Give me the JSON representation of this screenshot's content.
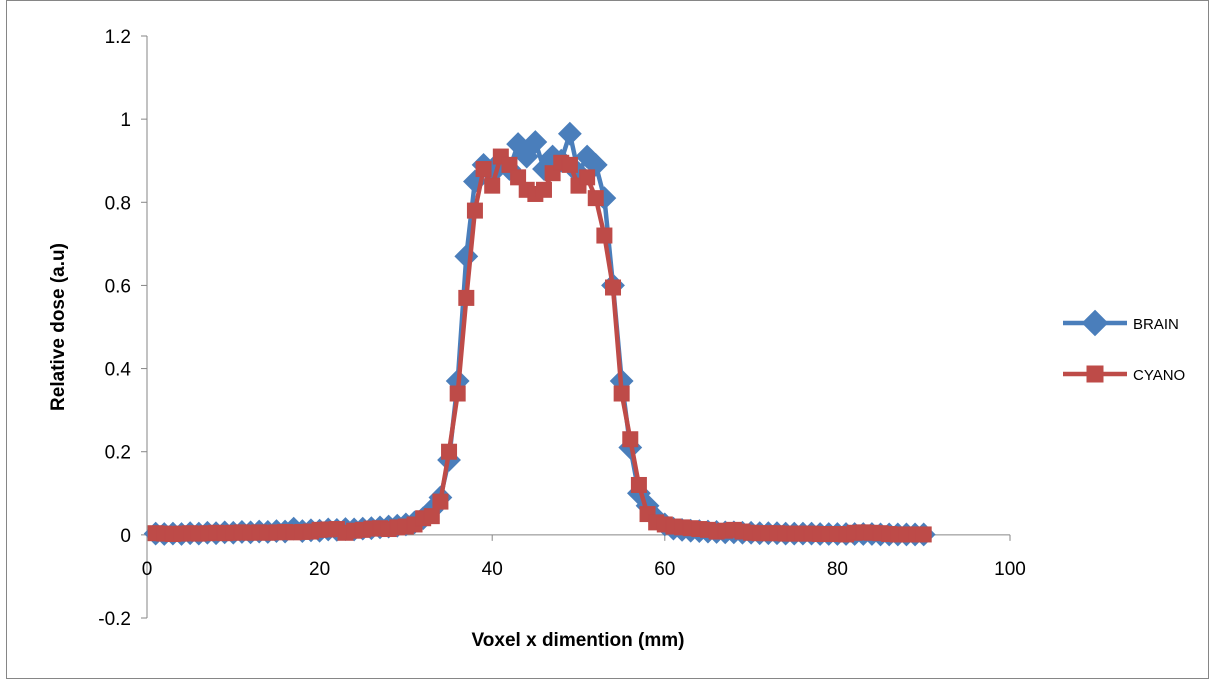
{
  "chart_data": {
    "type": "line",
    "title": "",
    "xlabel": "Voxel x dimention (mm)",
    "ylabel": "Relative dose (a.u)",
    "xlim": [
      0,
      100
    ],
    "ylim": [
      -0.2,
      1.2
    ],
    "x_ticks": [
      "0",
      "20",
      "40",
      "60",
      "80",
      "100"
    ],
    "y_ticks": [
      "-0.2",
      "0",
      "0.2",
      "0.4",
      "0.6",
      "0.8",
      "1",
      "1.2"
    ],
    "grid": false,
    "legend_position": "right",
    "x": [
      1,
      2,
      3,
      4,
      5,
      6,
      7,
      8,
      9,
      10,
      11,
      12,
      13,
      14,
      15,
      16,
      17,
      18,
      19,
      20,
      21,
      22,
      23,
      24,
      25,
      26,
      27,
      28,
      29,
      30,
      31,
      32,
      33,
      34,
      35,
      36,
      37,
      38,
      39,
      40,
      41,
      42,
      43,
      44,
      45,
      46,
      47,
      48,
      49,
      50,
      51,
      52,
      53,
      54,
      55,
      56,
      57,
      58,
      59,
      60,
      61,
      62,
      63,
      64,
      65,
      66,
      67,
      68,
      69,
      70,
      71,
      72,
      73,
      74,
      75,
      76,
      77,
      78,
      79,
      80,
      81,
      82,
      83,
      84,
      85,
      86,
      87,
      88,
      89,
      90
    ],
    "series": [
      {
        "name": "BRAIN",
        "color": "#4a7ebb",
        "marker": "diamond",
        "values": [
          0.003,
          0.002,
          0.003,
          0.002,
          0.004,
          0.003,
          0.005,
          0.004,
          0.006,
          0.005,
          0.007,
          0.006,
          0.008,
          0.007,
          0.009,
          0.008,
          0.015,
          0.009,
          0.011,
          0.01,
          0.013,
          0.012,
          0.014,
          0.013,
          0.015,
          0.016,
          0.018,
          0.02,
          0.022,
          0.025,
          0.03,
          0.04,
          0.06,
          0.09,
          0.18,
          0.37,
          0.67,
          0.85,
          0.89,
          0.87,
          0.9,
          0.88,
          0.94,
          0.91,
          0.945,
          0.88,
          0.91,
          0.9,
          0.965,
          0.87,
          0.91,
          0.89,
          0.81,
          0.6,
          0.37,
          0.21,
          0.1,
          0.07,
          0.04,
          0.025,
          0.015,
          0.012,
          0.01,
          0.009,
          0.008,
          0.007,
          0.006,
          0.006,
          0.005,
          0.005,
          0.004,
          0.004,
          0.004,
          0.003,
          0.003,
          0.003,
          0.003,
          0.002,
          0.002,
          0.002,
          0.002,
          0.002,
          0.002,
          0.002,
          0.001,
          0.001,
          0.001,
          0.001,
          0.001,
          0.001
        ]
      },
      {
        "name": "CYANO",
        "color": "#be4b48",
        "marker": "square",
        "values": [
          0.004,
          0.003,
          0.002,
          0.003,
          0.004,
          0.003,
          0.004,
          0.005,
          0.004,
          0.005,
          0.006,
          0.005,
          0.006,
          0.005,
          0.006,
          0.007,
          0.006,
          0.007,
          0.008,
          0.012,
          0.013,
          0.014,
          0.005,
          0.01,
          0.012,
          0.015,
          0.016,
          0.014,
          0.018,
          0.02,
          0.025,
          0.04,
          0.045,
          0.08,
          0.2,
          0.34,
          0.57,
          0.78,
          0.88,
          0.84,
          0.91,
          0.89,
          0.86,
          0.83,
          0.82,
          0.83,
          0.87,
          0.895,
          0.89,
          0.84,
          0.86,
          0.81,
          0.72,
          0.595,
          0.34,
          0.23,
          0.12,
          0.05,
          0.03,
          0.025,
          0.02,
          0.018,
          0.016,
          0.014,
          0.012,
          0.008,
          0.01,
          0.012,
          0.008,
          0.005,
          0.004,
          0.004,
          0.004,
          0.003,
          0.003,
          0.003,
          0.003,
          0.002,
          0.002,
          0.002,
          0.001,
          0.005,
          0.006,
          0.005,
          0.004,
          0.002,
          0.001,
          0.001,
          0.001,
          0.001
        ]
      }
    ]
  }
}
